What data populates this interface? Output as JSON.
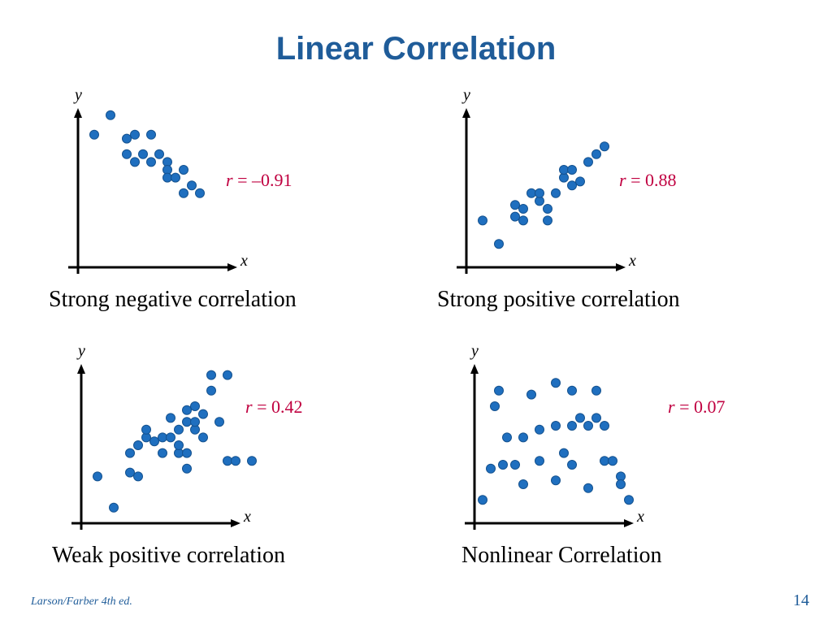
{
  "title": "Linear Correlation",
  "footer": {
    "source": "Larson/Farber 4th ed.",
    "page": "14"
  },
  "colors": {
    "dot": "#1f6fbf",
    "dot_edge": "#15528f",
    "title": "#1f5c99",
    "r_label": "#c00040"
  },
  "chart_data": [
    {
      "type": "scatter",
      "xlabel": "x",
      "ylabel": "y",
      "r_symbol": "r",
      "r_text": " = –0.91",
      "caption": "Strong negative correlation",
      "xlim": [
        0,
        20
      ],
      "ylim": [
        0,
        20
      ],
      "points": [
        [
          2,
          17
        ],
        [
          4,
          19.5
        ],
        [
          6,
          16.5
        ],
        [
          7,
          17
        ],
        [
          9,
          17
        ],
        [
          6,
          14.5
        ],
        [
          8,
          14.5
        ],
        [
          10,
          14.5
        ],
        [
          7,
          13.5
        ],
        [
          9,
          13.5
        ],
        [
          11,
          13.5
        ],
        [
          11,
          12.5
        ],
        [
          13,
          12.5
        ],
        [
          11,
          11.5
        ],
        [
          12,
          11.5
        ],
        [
          14,
          10.5
        ],
        [
          13,
          9.5
        ],
        [
          15,
          9.5
        ]
      ]
    },
    {
      "type": "scatter",
      "xlabel": "x",
      "ylabel": "y",
      "r_symbol": "r",
      "r_text": " = 0.88",
      "caption": "Strong positive correlation",
      "xlim": [
        0,
        20
      ],
      "ylim": [
        0,
        20
      ],
      "points": [
        [
          2,
          6
        ],
        [
          4,
          3
        ],
        [
          6,
          8
        ],
        [
          6,
          6.5
        ],
        [
          7,
          6
        ],
        [
          7,
          7.5
        ],
        [
          8,
          9.5
        ],
        [
          9,
          8.5
        ],
        [
          9,
          9.5
        ],
        [
          10,
          6
        ],
        [
          10,
          7.5
        ],
        [
          11,
          9.5
        ],
        [
          12,
          11.5
        ],
        [
          12,
          12.5
        ],
        [
          13,
          10.5
        ],
        [
          13,
          12.5
        ],
        [
          14,
          11
        ],
        [
          15,
          13.5
        ],
        [
          16,
          14.5
        ],
        [
          17,
          15.5
        ]
      ]
    },
    {
      "type": "scatter",
      "xlabel": "x",
      "ylabel": "y",
      "r_symbol": "r",
      "r_text": " = 0.42",
      "caption": "Weak positive correlation",
      "xlim": [
        0,
        20
      ],
      "ylim": [
        0,
        20
      ],
      "points": [
        [
          2,
          6
        ],
        [
          4,
          2
        ],
        [
          6,
          9
        ],
        [
          6,
          6.5
        ],
        [
          7,
          6
        ],
        [
          7,
          10
        ],
        [
          8,
          11
        ],
        [
          8,
          12
        ],
        [
          9,
          10.5
        ],
        [
          10,
          9
        ],
        [
          10,
          11
        ],
        [
          11,
          11
        ],
        [
          11,
          13.5
        ],
        [
          12,
          9
        ],
        [
          12,
          10
        ],
        [
          12,
          12
        ],
        [
          13,
          7
        ],
        [
          13,
          9
        ],
        [
          13,
          13
        ],
        [
          13,
          14.5
        ],
        [
          14,
          12
        ],
        [
          14,
          13
        ],
        [
          14,
          15
        ],
        [
          15,
          11
        ],
        [
          15,
          14
        ],
        [
          16,
          17
        ],
        [
          16,
          19
        ],
        [
          17,
          13
        ],
        [
          18,
          19
        ],
        [
          18,
          8
        ],
        [
          19,
          8
        ],
        [
          21,
          8
        ]
      ]
    },
    {
      "type": "scatter",
      "xlabel": "x",
      "ylabel": "y",
      "r_symbol": "r",
      "r_text": " = 0.07",
      "caption": "Nonlinear Correlation",
      "xlim": [
        0,
        20
      ],
      "ylim": [
        0,
        20
      ],
      "points": [
        [
          1,
          3
        ],
        [
          2,
          7
        ],
        [
          2.5,
          15
        ],
        [
          3,
          17
        ],
        [
          3.5,
          7.5
        ],
        [
          4,
          11
        ],
        [
          5,
          7.5
        ],
        [
          6,
          11
        ],
        [
          6,
          5
        ],
        [
          7,
          16.5
        ],
        [
          8,
          8
        ],
        [
          8,
          12
        ],
        [
          10,
          18
        ],
        [
          10,
          5.5
        ],
        [
          10,
          12.5
        ],
        [
          11,
          9
        ],
        [
          12,
          17
        ],
        [
          12,
          12.5
        ],
        [
          12,
          7.5
        ],
        [
          13,
          13.5
        ],
        [
          14,
          12.5
        ],
        [
          14,
          4.5
        ],
        [
          15,
          17
        ],
        [
          15,
          13.5
        ],
        [
          16,
          8
        ],
        [
          16,
          12.5
        ],
        [
          17,
          8
        ],
        [
          18,
          6
        ],
        [
          18,
          5
        ],
        [
          19,
          3
        ]
      ]
    }
  ]
}
